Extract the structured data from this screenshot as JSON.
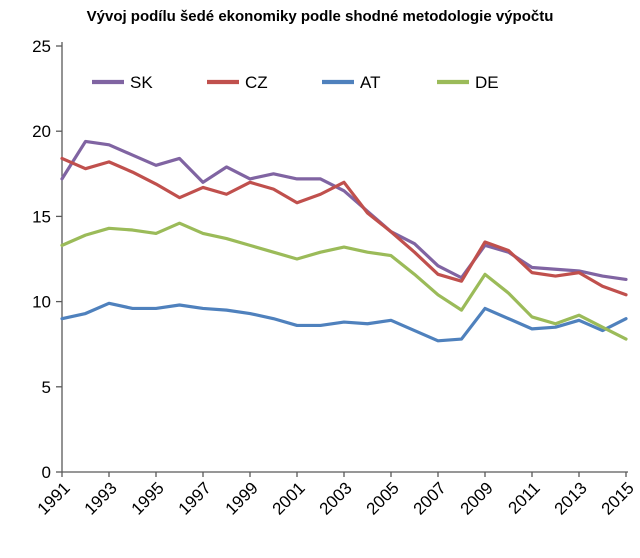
{
  "chart_data": {
    "type": "line",
    "title": "Vývoj podílu šedé ekonomiky podle shodné metodologie výpočtu",
    "xlabel": "",
    "ylabel": "",
    "ylim": [
      0,
      25
    ],
    "y_ticks": [
      0,
      5,
      10,
      15,
      20,
      25
    ],
    "grid": false,
    "legend_position": "top",
    "x": [
      1991,
      1992,
      1993,
      1994,
      1995,
      1996,
      1997,
      1998,
      1999,
      2000,
      2001,
      2002,
      2003,
      2004,
      2005,
      2006,
      2007,
      2008,
      2009,
      2010,
      2011,
      2012,
      2013,
      2014,
      2015
    ],
    "x_tick_labels": [
      1991,
      1993,
      1995,
      1997,
      1999,
      2001,
      2003,
      2005,
      2007,
      2009,
      2011,
      2013,
      2015
    ],
    "series": [
      {
        "name": "SK",
        "color": "#8064A2",
        "values": [
          17.2,
          19.4,
          19.2,
          18.6,
          18.0,
          18.4,
          17.0,
          17.9,
          17.2,
          17.5,
          17.2,
          17.2,
          16.5,
          15.3,
          14.1,
          13.4,
          12.1,
          11.4,
          13.3,
          12.9,
          12.0,
          11.9,
          11.8,
          11.5,
          11.3
        ]
      },
      {
        "name": "CZ",
        "color": "#C0504D",
        "values": [
          18.4,
          17.8,
          18.2,
          17.6,
          16.9,
          16.1,
          16.7,
          16.3,
          17.0,
          16.6,
          15.8,
          16.3,
          17.0,
          15.2,
          14.1,
          12.9,
          11.6,
          11.2,
          13.5,
          13.0,
          11.7,
          11.5,
          11.7,
          10.9,
          10.4
        ]
      },
      {
        "name": "AT",
        "color": "#4F81BD",
        "values": [
          9.0,
          9.3,
          9.9,
          9.6,
          9.6,
          9.8,
          9.6,
          9.5,
          9.3,
          9.0,
          8.6,
          8.6,
          8.8,
          8.7,
          8.9,
          8.3,
          7.7,
          7.8,
          9.6,
          9.0,
          8.4,
          8.5,
          8.9,
          8.3,
          9.0
        ]
      },
      {
        "name": "DE",
        "color": "#9BBB59",
        "values": [
          13.3,
          13.9,
          14.3,
          14.2,
          14.0,
          14.6,
          14.0,
          13.7,
          13.3,
          12.9,
          12.5,
          12.9,
          13.2,
          12.9,
          12.7,
          11.6,
          10.4,
          9.5,
          11.6,
          10.5,
          9.1,
          8.7,
          9.2,
          8.5,
          7.8
        ]
      }
    ]
  }
}
